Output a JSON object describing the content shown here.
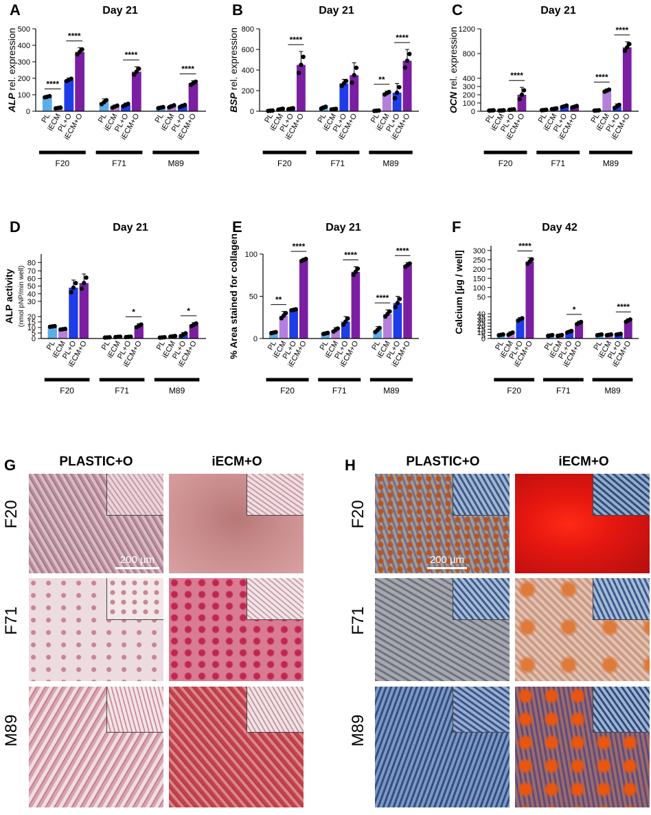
{
  "colors": {
    "PL": "#5aaee8",
    "iECM": "#b57fdc",
    "PL+O": "#1e3de8",
    "iECM+O": "#7b1fa2"
  },
  "chart_data": [
    {
      "id": "A",
      "type": "bar",
      "title": "Day 21",
      "ylabel_italic": "ALP",
      "ylabel": " rel. expression",
      "ylim": [
        0,
        500
      ],
      "yticks": [
        "0",
        "100",
        "200",
        "300",
        "400",
        "500"
      ],
      "groups": [
        "F20",
        "F71",
        "M89"
      ],
      "categories": [
        "PL",
        "iECM",
        "PL+O",
        "iECM+O"
      ],
      "series": [
        {
          "group": "F20",
          "values": [
            88,
            20,
            190,
            360
          ],
          "err": [
            6,
            4,
            12,
            25
          ]
        },
        {
          "group": "F71",
          "values": [
            55,
            28,
            38,
            240
          ],
          "err": [
            20,
            10,
            12,
            30
          ]
        },
        {
          "group": "M89",
          "values": [
            22,
            30,
            32,
            170
          ],
          "err": [
            5,
            10,
            10,
            15
          ]
        }
      ],
      "sig": [
        {
          "group": 0,
          "from": 0,
          "to": 1,
          "label": "****"
        },
        {
          "group": 0,
          "from": 2,
          "to": 3,
          "label": "****"
        },
        {
          "group": 1,
          "from": 2,
          "to": 3,
          "label": "****"
        },
        {
          "group": 2,
          "from": 2,
          "to": 3,
          "label": "****"
        }
      ]
    },
    {
      "id": "B",
      "type": "bar",
      "title": "Day 21",
      "ylabel_italic": "BSP",
      "ylabel": " rel. expression",
      "ylim": [
        0,
        800
      ],
      "yticks": [
        "0",
        "200",
        "400",
        "600",
        "800"
      ],
      "groups": [
        "F20",
        "F71",
        "M89"
      ],
      "categories": [
        "PL",
        "iECM",
        "PL+O",
        "iECM+O"
      ],
      "series": [
        {
          "group": "F20",
          "values": [
            5,
            20,
            25,
            450
          ],
          "err": [
            3,
            8,
            8,
            130
          ]
        },
        {
          "group": "F71",
          "values": [
            35,
            20,
            270,
            350
          ],
          "err": [
            15,
            5,
            40,
            120
          ]
        },
        {
          "group": "M89",
          "values": [
            5,
            175,
            180,
            490
          ],
          "err": [
            3,
            20,
            90,
            110
          ]
        }
      ],
      "sig": [
        {
          "group": 0,
          "from": 2,
          "to": 3,
          "label": "****"
        },
        {
          "group": 2,
          "from": 0,
          "to": 1,
          "label": "**"
        },
        {
          "group": 2,
          "from": 2,
          "to": 3,
          "label": "****"
        }
      ]
    },
    {
      "id": "C",
      "type": "bar",
      "title": "Day 21",
      "ylabel_italic": "OCN",
      "ylabel": " rel. expression",
      "ylim": [
        0,
        1200
      ],
      "yticks": [
        "0",
        "100",
        "200",
        "300",
        "400",
        "800",
        "1200"
      ],
      "groups": [
        "F20",
        "F71",
        "M89"
      ],
      "categories": [
        "PL",
        "iECM",
        "PL+O",
        "iECM+O"
      ],
      "series": [
        {
          "group": "F20",
          "values": [
            10,
            10,
            20,
            200
          ],
          "err": [
            3,
            3,
            5,
            90
          ]
        },
        {
          "group": "F71",
          "values": [
            15,
            30,
            60,
            55
          ],
          "err": [
            5,
            8,
            15,
            15
          ]
        },
        {
          "group": "M89",
          "values": [
            10,
            250,
            60,
            900
          ],
          "err": [
            3,
            20,
            30,
            90
          ]
        }
      ],
      "sig": [
        {
          "group": 0,
          "from": 2,
          "to": 3,
          "label": "****"
        },
        {
          "group": 2,
          "from": 0,
          "to": 1,
          "label": "****"
        },
        {
          "group": 2,
          "from": 2,
          "to": 3,
          "label": "****"
        }
      ]
    },
    {
      "id": "D",
      "type": "bar",
      "title": "Day 21",
      "ylabel": "ALP activity",
      "ylabel2": "(nmol pNP/min well)",
      "ylim": [
        0,
        80
      ],
      "yticks": [
        "0",
        "5",
        "10",
        "15",
        "20",
        "30",
        "40",
        "50",
        "60",
        "70",
        "80"
      ],
      "groups": [
        "F20",
        "F71",
        "M89"
      ],
      "categories": [
        "PL",
        "iECM",
        "PL+O",
        "iECM+O"
      ],
      "series": [
        {
          "group": "F20",
          "values": [
            11,
            8.5,
            48,
            54
          ],
          "err": [
            0.5,
            0.5,
            10,
            12
          ]
        },
        {
          "group": "F71",
          "values": [
            1,
            1.5,
            1.5,
            11.5
          ],
          "err": [
            0.2,
            0.3,
            0.3,
            2
          ]
        },
        {
          "group": "M89",
          "values": [
            1,
            2,
            3.5,
            12.5
          ],
          "err": [
            0.3,
            0.5,
            2,
            2
          ]
        }
      ],
      "sig": [
        {
          "group": 1,
          "from": 2,
          "to": 3,
          "label": "*"
        },
        {
          "group": 2,
          "from": 2,
          "to": 3,
          "label": "*"
        }
      ]
    },
    {
      "id": "E",
      "type": "bar",
      "title": "Day 21",
      "ylabel": "% Area stained for collagen",
      "ylim": [
        0,
        100
      ],
      "yticks": [
        "0",
        "50",
        "100"
      ],
      "groups": [
        "F20",
        "F71",
        "M89"
      ],
      "categories": [
        "PL",
        "iECM",
        "PL+O",
        "iECM+O"
      ],
      "series": [
        {
          "group": "F20",
          "values": [
            7,
            27,
            34,
            93
          ],
          "err": [
            1,
            5,
            1,
            2
          ]
        },
        {
          "group": "F71",
          "values": [
            6,
            10,
            20,
            79
          ],
          "err": [
            1,
            3,
            6,
            6
          ]
        },
        {
          "group": "M89",
          "values": [
            10,
            29,
            42,
            87
          ],
          "err": [
            4,
            5,
            8,
            3
          ]
        }
      ],
      "sig": [
        {
          "group": 0,
          "from": 0,
          "to": 1,
          "label": "**"
        },
        {
          "group": 0,
          "from": 2,
          "to": 3,
          "label": "****"
        },
        {
          "group": 1,
          "from": 2,
          "to": 3,
          "label": "****"
        },
        {
          "group": 2,
          "from": 0,
          "to": 1,
          "label": "****"
        },
        {
          "group": 2,
          "from": 2,
          "to": 3,
          "label": "****"
        }
      ]
    },
    {
      "id": "F",
      "type": "bar",
      "title": "Day 42",
      "ylabel": "Calcium [µg / well]",
      "ylim": [
        0,
        300
      ],
      "yticks": [
        "0",
        "5",
        "10",
        "15",
        "20",
        "25",
        "30",
        "35",
        "40",
        "50",
        "100",
        "150",
        "200",
        "250",
        "300"
      ],
      "groups": [
        "F20",
        "F71",
        "M89"
      ],
      "categories": [
        "PL",
        "iECM",
        "PL+O",
        "iECM+O"
      ],
      "series": [
        {
          "group": "F20",
          "values": [
            6,
            8,
            31,
            240
          ],
          "err": [
            1,
            3,
            3,
            20
          ]
        },
        {
          "group": "F71",
          "values": [
            5,
            5,
            11,
            25
          ],
          "err": [
            1,
            1,
            2,
            3
          ]
        },
        {
          "group": "M89",
          "values": [
            6,
            6,
            7,
            29
          ],
          "err": [
            1,
            1,
            1,
            3
          ]
        }
      ],
      "sig": [
        {
          "group": 0,
          "from": 2,
          "to": 3,
          "label": "****"
        },
        {
          "group": 1,
          "from": 2,
          "to": 3,
          "label": "*"
        },
        {
          "group": 2,
          "from": 2,
          "to": 3,
          "label": "****"
        }
      ]
    }
  ],
  "images": {
    "G": {
      "label": "G",
      "titles": [
        "PLASTIC+O",
        "iECM+O"
      ],
      "rows": [
        "F20",
        "F71",
        "M89"
      ],
      "scalebar": "200 µm"
    },
    "H": {
      "label": "H",
      "titles": [
        "PLASTIC+O",
        "iECM+O"
      ],
      "rows": [
        "F20",
        "F71",
        "M89"
      ],
      "scalebar": "200 µm"
    }
  }
}
